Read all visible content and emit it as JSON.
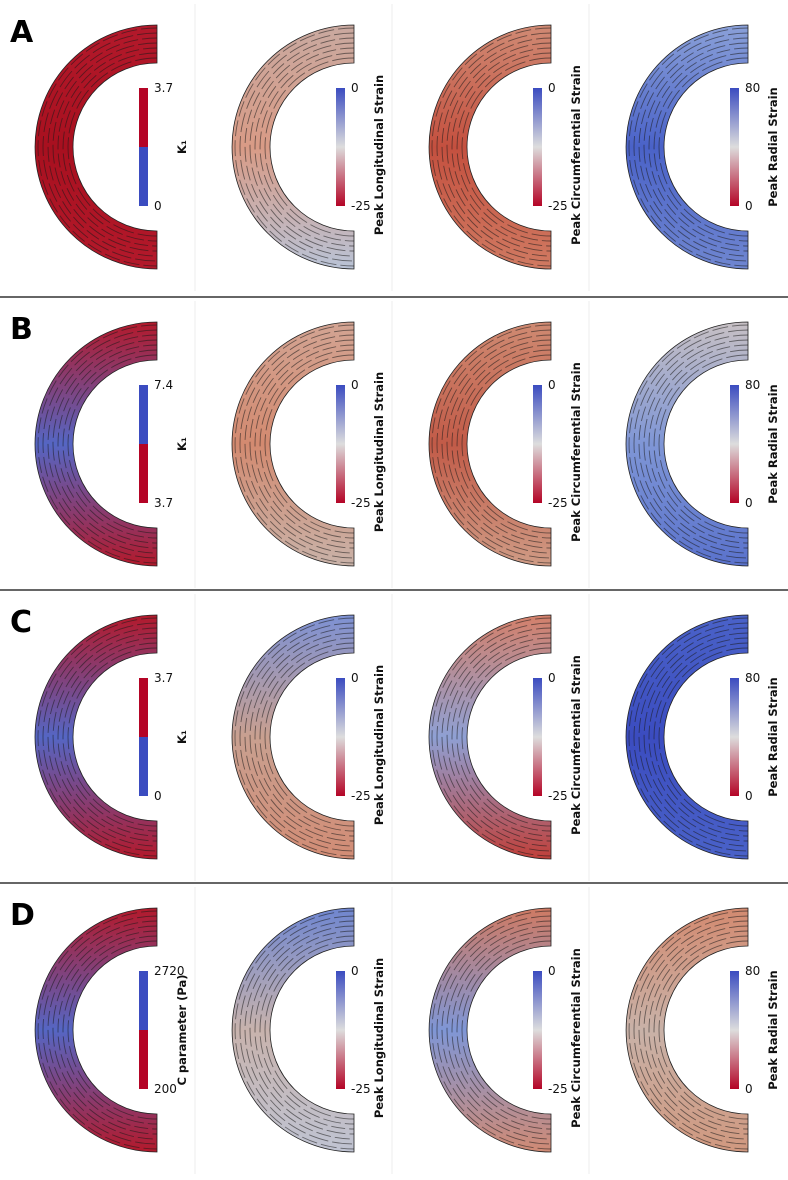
{
  "rows": [
    {
      "label": "A",
      "panels": [
        {
          "title": "K₁",
          "max": "3.7",
          "min": "0",
          "colors": [
            "#b40426",
            "#3b4cc0"
          ]
        },
        {
          "title": "Peak Longitudinal Strain",
          "max": "0",
          "min": "-25",
          "colors": [
            "#3b4cc0",
            "#dddddd",
            "#b40426"
          ]
        },
        {
          "title": "Peak Circumferential Strain",
          "max": "0",
          "min": "-25",
          "colors": [
            "#3b4cc0",
            "#dddddd",
            "#b40426"
          ]
        },
        {
          "title": "Peak Radial Strain",
          "max": "80",
          "min": "0",
          "colors": [
            "#3b4cc0",
            "#dddddd",
            "#b40426"
          ]
        }
      ]
    },
    {
      "label": "B",
      "panels": [
        {
          "title": "K₁",
          "max": "7.4",
          "min": "3.7",
          "colors": [
            "#3b4cc0",
            "#b40426"
          ]
        },
        {
          "title": "Peak Longitudinal Strain",
          "max": "0",
          "min": "-25",
          "colors": [
            "#3b4cc0",
            "#dddddd",
            "#b40426"
          ]
        },
        {
          "title": "Peak Circumferential Strain",
          "max": "0",
          "min": "-25",
          "colors": [
            "#3b4cc0",
            "#dddddd",
            "#b40426"
          ]
        },
        {
          "title": "Peak Radial Strain",
          "max": "80",
          "min": "0",
          "colors": [
            "#3b4cc0",
            "#dddddd",
            "#b40426"
          ]
        }
      ]
    },
    {
      "label": "C",
      "panels": [
        {
          "title": "K₁",
          "max": "3.7",
          "min": "0",
          "colors": [
            "#b40426",
            "#3b4cc0"
          ]
        },
        {
          "title": "Peak Longitudinal Strain",
          "max": "0",
          "min": "-25",
          "colors": [
            "#3b4cc0",
            "#dddddd",
            "#b40426"
          ]
        },
        {
          "title": "Peak Circumferential Strain",
          "max": "0",
          "min": "-25",
          "colors": [
            "#3b4cc0",
            "#dddddd",
            "#b40426"
          ]
        },
        {
          "title": "Peak Radial Strain",
          "max": "80",
          "min": "0",
          "colors": [
            "#3b4cc0",
            "#dddddd",
            "#b40426"
          ]
        }
      ]
    },
    {
      "label": "D",
      "panels": [
        {
          "title": "C parameter (Pa)",
          "max": "2720",
          "min": "200",
          "colors": [
            "#3b4cc0",
            "#b40426"
          ]
        },
        {
          "title": "Peak Longitudinal Strain",
          "max": "0",
          "min": "-25",
          "colors": [
            "#3b4cc0",
            "#dddddd",
            "#b40426"
          ]
        },
        {
          "title": "Peak Circumferential Strain",
          "max": "0",
          "min": "-25",
          "colors": [
            "#3b4cc0",
            "#dddddd",
            "#b40426"
          ]
        },
        {
          "title": "Peak Radial Strain",
          "max": "80",
          "min": "0",
          "colors": [
            "#3b4cc0",
            "#dddddd",
            "#b40426"
          ]
        }
      ]
    }
  ]
}
